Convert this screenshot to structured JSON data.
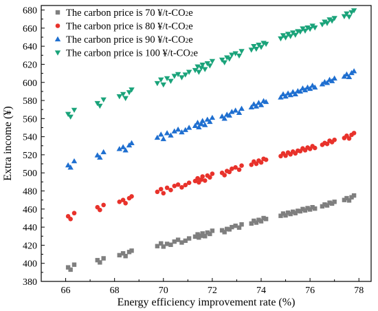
{
  "chart_data": {
    "type": "scatter",
    "title": "",
    "xlabel": "Energy efficiency improvement rate (%)",
    "ylabel": "Extra income (¥)",
    "xlim": [
      65,
      78.5
    ],
    "ylim": [
      380,
      685
    ],
    "x_ticks": [
      "66",
      "68",
      "70",
      "72",
      "74",
      "76",
      "78"
    ],
    "y_ticks": [
      "380",
      "400",
      "420",
      "440",
      "460",
      "480",
      "500",
      "520",
      "540",
      "560",
      "580",
      "600",
      "620",
      "640",
      "660",
      "680"
    ],
    "grid": false,
    "legend_position": "top-left",
    "series": [
      {
        "name": "The carbon price is 70 ¥/t-CO",
        "name_subscript": "2",
        "name_suffix": "e",
        "marker": "square",
        "color": "#7f7f7f",
        "points": [
          [
            66.1,
            395.5
          ],
          [
            66.2,
            393
          ],
          [
            66.35,
            398.5
          ],
          [
            67.3,
            403.5
          ],
          [
            67.4,
            401
          ],
          [
            67.55,
            405.5
          ],
          [
            68.2,
            409
          ],
          [
            68.35,
            411
          ],
          [
            68.45,
            408
          ],
          [
            68.6,
            412.5
          ],
          [
            68.7,
            414
          ],
          [
            69.75,
            419
          ],
          [
            69.9,
            422
          ],
          [
            70.0,
            418.5
          ],
          [
            70.15,
            421.5
          ],
          [
            70.3,
            420.5
          ],
          [
            70.45,
            424
          ],
          [
            70.6,
            426
          ],
          [
            70.75,
            423
          ],
          [
            70.9,
            425
          ],
          [
            71.05,
            427.5
          ],
          [
            71.3,
            429.5
          ],
          [
            71.4,
            432
          ],
          [
            71.45,
            428.5
          ],
          [
            71.55,
            430.5
          ],
          [
            71.6,
            433
          ],
          [
            71.7,
            430
          ],
          [
            71.8,
            434
          ],
          [
            71.9,
            432.5
          ],
          [
            72.0,
            436
          ],
          [
            72.4,
            436.5
          ],
          [
            72.5,
            434.5
          ],
          [
            72.6,
            438
          ],
          [
            72.7,
            437.5
          ],
          [
            72.8,
            440
          ],
          [
            72.95,
            441.5
          ],
          [
            73.1,
            439.5
          ],
          [
            73.2,
            443
          ],
          [
            73.6,
            444
          ],
          [
            73.7,
            447
          ],
          [
            73.8,
            445
          ],
          [
            73.9,
            448
          ],
          [
            74.0,
            446.5
          ],
          [
            74.1,
            450
          ],
          [
            74.2,
            449
          ],
          [
            74.8,
            452.5
          ],
          [
            74.9,
            455
          ],
          [
            75.0,
            453
          ],
          [
            75.1,
            456
          ],
          [
            75.2,
            454.5
          ],
          [
            75.3,
            457
          ],
          [
            75.4,
            455.5
          ],
          [
            75.5,
            458
          ],
          [
            75.6,
            457.5
          ],
          [
            75.7,
            460
          ],
          [
            75.8,
            458.5
          ],
          [
            75.9,
            461
          ],
          [
            76.0,
            459.5
          ],
          [
            76.1,
            462
          ],
          [
            76.2,
            460.5
          ],
          [
            76.5,
            463
          ],
          [
            76.6,
            465
          ],
          [
            76.7,
            464
          ],
          [
            76.8,
            467
          ],
          [
            76.9,
            466
          ],
          [
            77.0,
            468
          ],
          [
            77.4,
            470
          ],
          [
            77.5,
            472
          ],
          [
            77.6,
            469.5
          ],
          [
            77.7,
            473
          ],
          [
            77.8,
            475
          ]
        ]
      },
      {
        "name": "The carbon price is 80 ¥/t-CO",
        "name_subscript": "2",
        "name_suffix": "e",
        "marker": "circle",
        "color": "#e8322b",
        "points": [
          [
            66.1,
            452
          ],
          [
            66.2,
            449
          ],
          [
            66.35,
            455.5
          ],
          [
            67.3,
            462
          ],
          [
            67.4,
            459
          ],
          [
            67.55,
            464.5
          ],
          [
            68.2,
            468
          ],
          [
            68.35,
            470
          ],
          [
            68.45,
            466.5
          ],
          [
            68.6,
            472
          ],
          [
            68.7,
            474
          ],
          [
            69.75,
            479
          ],
          [
            69.9,
            482
          ],
          [
            70.0,
            477.5
          ],
          [
            70.15,
            483.5
          ],
          [
            70.3,
            481
          ],
          [
            70.45,
            485.5
          ],
          [
            70.6,
            487
          ],
          [
            70.75,
            484
          ],
          [
            70.9,
            486.5
          ],
          [
            71.05,
            489
          ],
          [
            71.3,
            491
          ],
          [
            71.4,
            494
          ],
          [
            71.45,
            489.5
          ],
          [
            71.55,
            492.5
          ],
          [
            71.6,
            496
          ],
          [
            71.7,
            491.5
          ],
          [
            71.8,
            497
          ],
          [
            71.9,
            495
          ],
          [
            72.0,
            499
          ],
          [
            72.4,
            500
          ],
          [
            72.5,
            497.5
          ],
          [
            72.6,
            502
          ],
          [
            72.7,
            501
          ],
          [
            72.8,
            504.5
          ],
          [
            72.95,
            506
          ],
          [
            73.1,
            503.5
          ],
          [
            73.2,
            508
          ],
          [
            73.6,
            509
          ],
          [
            73.7,
            512.5
          ],
          [
            73.8,
            510
          ],
          [
            73.9,
            513.5
          ],
          [
            74.0,
            511.5
          ],
          [
            74.1,
            515.5
          ],
          [
            74.2,
            514.5
          ],
          [
            74.8,
            518.5
          ],
          [
            74.9,
            521.5
          ],
          [
            75.0,
            519
          ],
          [
            75.1,
            522.5
          ],
          [
            75.2,
            520.5
          ],
          [
            75.3,
            523.5
          ],
          [
            75.4,
            521.5
          ],
          [
            75.5,
            524.5
          ],
          [
            75.6,
            524
          ],
          [
            75.7,
            527
          ],
          [
            75.8,
            525
          ],
          [
            75.9,
            528
          ],
          [
            76.0,
            526.5
          ],
          [
            76.1,
            529.5
          ],
          [
            76.2,
            527.5
          ],
          [
            76.5,
            531
          ],
          [
            76.6,
            533
          ],
          [
            76.7,
            532
          ],
          [
            76.8,
            535.5
          ],
          [
            76.9,
            534
          ],
          [
            77.0,
            536.5
          ],
          [
            77.4,
            538.5
          ],
          [
            77.5,
            541
          ],
          [
            77.6,
            538
          ],
          [
            77.7,
            542
          ],
          [
            77.8,
            544
          ]
        ]
      },
      {
        "name": "The carbon price is 90 ¥/t-CO",
        "name_subscript": "2",
        "name_suffix": "e",
        "marker": "triangle-up",
        "color": "#1f6fd0",
        "points": [
          [
            66.1,
            508.5
          ],
          [
            66.2,
            506
          ],
          [
            66.35,
            513
          ],
          [
            67.3,
            519.5
          ],
          [
            67.4,
            517
          ],
          [
            67.55,
            523
          ],
          [
            68.2,
            526.5
          ],
          [
            68.35,
            528.5
          ],
          [
            68.45,
            525
          ],
          [
            68.6,
            530.5
          ],
          [
            68.7,
            533
          ],
          [
            69.75,
            539
          ],
          [
            69.9,
            542.5
          ],
          [
            70.0,
            537.5
          ],
          [
            70.15,
            544
          ],
          [
            70.3,
            541.5
          ],
          [
            70.45,
            546
          ],
          [
            70.6,
            548
          ],
          [
            70.75,
            545
          ],
          [
            70.9,
            547.5
          ],
          [
            71.05,
            550
          ],
          [
            71.3,
            552
          ],
          [
            71.4,
            555.5
          ],
          [
            71.45,
            550.5
          ],
          [
            71.55,
            554
          ],
          [
            71.6,
            557.5
          ],
          [
            71.7,
            553
          ],
          [
            71.8,
            559
          ],
          [
            71.9,
            556.5
          ],
          [
            72.0,
            561
          ],
          [
            72.4,
            562.5
          ],
          [
            72.5,
            560
          ],
          [
            72.6,
            564.5
          ],
          [
            72.7,
            563.5
          ],
          [
            72.8,
            567.5
          ],
          [
            72.95,
            569
          ],
          [
            73.1,
            566.5
          ],
          [
            73.2,
            571
          ],
          [
            73.6,
            572.5
          ],
          [
            73.7,
            576
          ],
          [
            73.8,
            573.5
          ],
          [
            73.9,
            577.5
          ],
          [
            74.0,
            575
          ],
          [
            74.1,
            579.5
          ],
          [
            74.2,
            578.5
          ],
          [
            74.8,
            583.5
          ],
          [
            74.9,
            587
          ],
          [
            75.0,
            584.5
          ],
          [
            75.1,
            588
          ],
          [
            75.2,
            586
          ],
          [
            75.3,
            589.5
          ],
          [
            75.4,
            587
          ],
          [
            75.5,
            590.5
          ],
          [
            75.6,
            590
          ],
          [
            75.7,
            593.5
          ],
          [
            75.8,
            591.5
          ],
          [
            75.9,
            594.5
          ],
          [
            76.0,
            593
          ],
          [
            76.1,
            596.5
          ],
          [
            76.2,
            594.5
          ],
          [
            76.5,
            598
          ],
          [
            76.6,
            600.5
          ],
          [
            76.7,
            599.5
          ],
          [
            76.8,
            603
          ],
          [
            76.9,
            601.5
          ],
          [
            77.0,
            604.5
          ],
          [
            77.4,
            606.5
          ],
          [
            77.5,
            609
          ],
          [
            77.6,
            606
          ],
          [
            77.7,
            610.5
          ],
          [
            77.8,
            612.5
          ]
        ]
      },
      {
        "name": "The carbon price is 100 ¥/t-CO",
        "name_subscript": "2",
        "name_suffix": "e",
        "marker": "triangle-down",
        "color": "#1aa37a",
        "points": [
          [
            66.1,
            565
          ],
          [
            66.2,
            562
          ],
          [
            66.35,
            569.5
          ],
          [
            67.3,
            577
          ],
          [
            67.4,
            574
          ],
          [
            67.55,
            581
          ],
          [
            68.2,
            584.5
          ],
          [
            68.35,
            587
          ],
          [
            68.45,
            582.5
          ],
          [
            68.6,
            589
          ],
          [
            68.7,
            592
          ],
          [
            69.75,
            599
          ],
          [
            69.9,
            603
          ],
          [
            70.0,
            597.5
          ],
          [
            70.15,
            604.5
          ],
          [
            70.3,
            601.5
          ],
          [
            70.45,
            607
          ],
          [
            70.6,
            609
          ],
          [
            70.75,
            605.5
          ],
          [
            70.9,
            608.5
          ],
          [
            71.05,
            611.5
          ],
          [
            71.3,
            613.5
          ],
          [
            71.4,
            617.5
          ],
          [
            71.45,
            611.5
          ],
          [
            71.55,
            616
          ],
          [
            71.6,
            619.5
          ],
          [
            71.7,
            614.5
          ],
          [
            71.8,
            621
          ],
          [
            71.9,
            618.5
          ],
          [
            72.0,
            623.5
          ],
          [
            72.4,
            625
          ],
          [
            72.5,
            622
          ],
          [
            72.6,
            627.5
          ],
          [
            72.7,
            626
          ],
          [
            72.8,
            630.5
          ],
          [
            72.95,
            632
          ],
          [
            73.1,
            629.5
          ],
          [
            73.2,
            634.5
          ],
          [
            73.6,
            636
          ],
          [
            73.7,
            640
          ],
          [
            73.8,
            637
          ],
          [
            73.9,
            641.5
          ],
          [
            74.0,
            639
          ],
          [
            74.1,
            643.5
          ],
          [
            74.2,
            642.5
          ],
          [
            74.8,
            648.5
          ],
          [
            74.9,
            652
          ],
          [
            75.0,
            649.5
          ],
          [
            75.1,
            653.5
          ],
          [
            75.2,
            651
          ],
          [
            75.3,
            655
          ],
          [
            75.4,
            652.5
          ],
          [
            75.5,
            656.5
          ],
          [
            75.6,
            656
          ],
          [
            75.7,
            659.5
          ],
          [
            75.8,
            657
          ],
          [
            75.9,
            660.5
          ],
          [
            76.0,
            659
          ],
          [
            76.1,
            662.5
          ],
          [
            76.2,
            660.5
          ],
          [
            76.5,
            664
          ],
          [
            76.6,
            667
          ],
          [
            76.7,
            665.5
          ],
          [
            76.8,
            669.5
          ],
          [
            76.9,
            668
          ],
          [
            77.0,
            671
          ],
          [
            77.4,
            673
          ],
          [
            77.5,
            676
          ],
          [
            77.6,
            672.5
          ],
          [
            77.7,
            677.5
          ],
          [
            77.8,
            679.5
          ]
        ]
      }
    ]
  }
}
